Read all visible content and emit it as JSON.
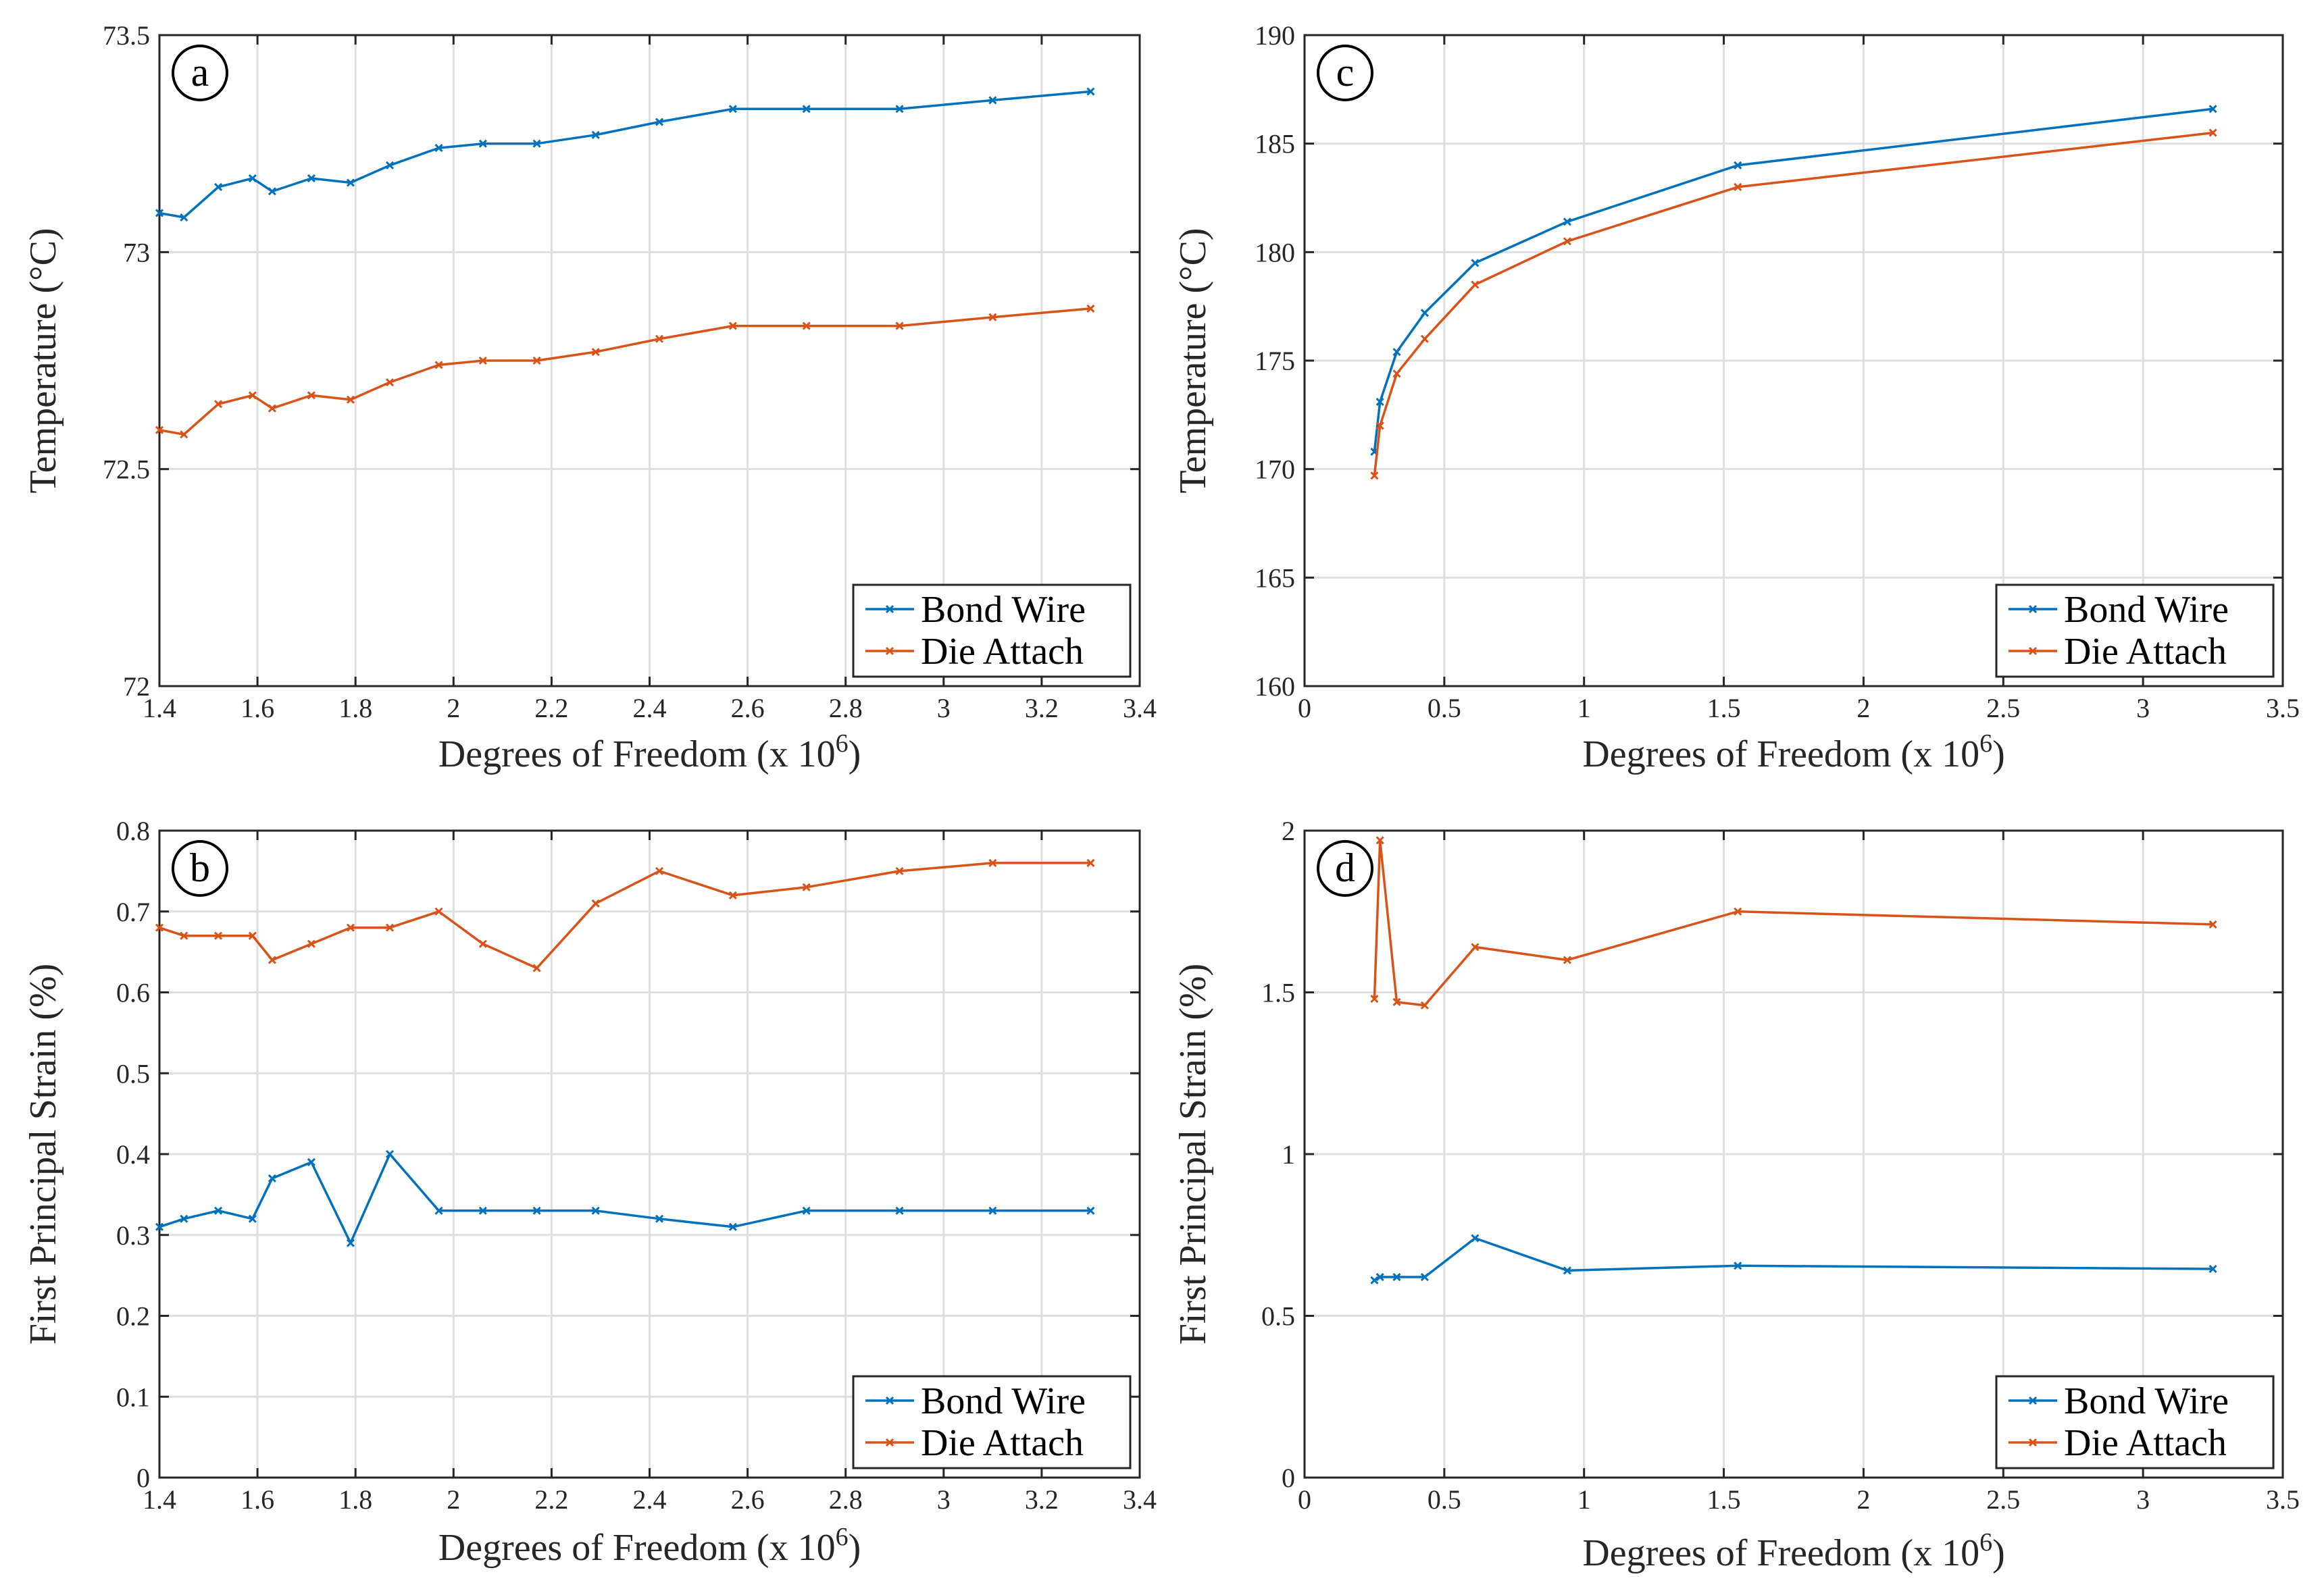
{
  "colors": {
    "bond_wire": "#0072BD",
    "die_attach": "#D95319",
    "axes": "#262626",
    "grid": "#dfdfdf"
  },
  "chart_data": [
    {
      "id": "a",
      "panel_label": "a",
      "type": "line",
      "xlabel": "Degrees of Freedom (x 10",
      "xlabel_exponent": "6",
      "xlabel_close": ")",
      "ylabel": "Temperature (°C)",
      "xlim": [
        1.4,
        3.4
      ],
      "ylim": [
        72,
        73.5
      ],
      "xticks": [
        1.4,
        1.6,
        1.8,
        2,
        2.2,
        2.4,
        2.6,
        2.8,
        3,
        3.2,
        3.4
      ],
      "xtick_labels": [
        "1.4",
        "1.6",
        "1.8",
        "2",
        "2.2",
        "2.4",
        "2.6",
        "2.8",
        "3",
        "3.2",
        "3.4"
      ],
      "yticks": [
        72,
        72.5,
        73,
        73.5
      ],
      "ytick_labels": [
        "72",
        "72.5",
        "73",
        "73.5"
      ],
      "legend": "bottom-right",
      "series": [
        {
          "name": "Bond Wire",
          "color_key": "bond_wire",
          "x": [
            1.4,
            1.45,
            1.52,
            1.59,
            1.63,
            1.71,
            1.79,
            1.87,
            1.97,
            2.06,
            2.17,
            2.29,
            2.42,
            2.57,
            2.72,
            2.91,
            3.1,
            3.3
          ],
          "values": [
            73.09,
            73.08,
            73.15,
            73.17,
            73.14,
            73.17,
            73.16,
            73.2,
            73.24,
            73.25,
            73.25,
            73.27,
            73.3,
            73.33,
            73.33,
            73.33,
            73.35,
            73.37
          ]
        },
        {
          "name": "Die Attach",
          "color_key": "die_attach",
          "x": [
            1.4,
            1.45,
            1.52,
            1.59,
            1.63,
            1.71,
            1.79,
            1.87,
            1.97,
            2.06,
            2.17,
            2.29,
            2.42,
            2.57,
            2.72,
            2.91,
            3.1,
            3.3
          ],
          "values": [
            72.59,
            72.58,
            72.65,
            72.67,
            72.64,
            72.67,
            72.66,
            72.7,
            72.74,
            72.75,
            72.75,
            72.77,
            72.8,
            72.83,
            72.83,
            72.83,
            72.85,
            72.87
          ]
        }
      ]
    },
    {
      "id": "b",
      "panel_label": "b",
      "type": "line",
      "xlabel": "Degrees of Freedom (x 10",
      "xlabel_exponent": "6",
      "xlabel_close": ")",
      "ylabel": "First Principal Strain (%)",
      "xlim": [
        1.4,
        3.4
      ],
      "ylim": [
        0,
        0.8
      ],
      "xticks": [
        1.4,
        1.6,
        1.8,
        2,
        2.2,
        2.4,
        2.6,
        2.8,
        3,
        3.2,
        3.4
      ],
      "xtick_labels": [
        "1.4",
        "1.6",
        "1.8",
        "2",
        "2.2",
        "2.4",
        "2.6",
        "2.8",
        "3",
        "3.2",
        "3.4"
      ],
      "yticks": [
        0,
        0.1,
        0.2,
        0.3,
        0.4,
        0.5,
        0.6,
        0.7,
        0.8
      ],
      "ytick_labels": [
        "0",
        "0.1",
        "0.2",
        "0.3",
        "0.4",
        "0.5",
        "0.6",
        "0.7",
        "0.8"
      ],
      "legend": "bottom-right",
      "series": [
        {
          "name": "Bond Wire",
          "color_key": "bond_wire",
          "x": [
            1.4,
            1.45,
            1.52,
            1.59,
            1.63,
            1.71,
            1.79,
            1.87,
            1.97,
            2.06,
            2.17,
            2.29,
            2.42,
            2.57,
            2.72,
            2.91,
            3.1,
            3.3
          ],
          "values": [
            0.31,
            0.32,
            0.33,
            0.32,
            0.37,
            0.39,
            0.29,
            0.4,
            0.33,
            0.33,
            0.33,
            0.33,
            0.32,
            0.31,
            0.33,
            0.33,
            0.33,
            0.33
          ]
        },
        {
          "name": "Die Attach",
          "color_key": "die_attach",
          "x": [
            1.4,
            1.45,
            1.52,
            1.59,
            1.63,
            1.71,
            1.79,
            1.87,
            1.97,
            2.06,
            2.17,
            2.29,
            2.42,
            2.57,
            2.72,
            2.91,
            3.1,
            3.3
          ],
          "values": [
            0.68,
            0.67,
            0.67,
            0.67,
            0.64,
            0.66,
            0.68,
            0.68,
            0.7,
            0.66,
            0.63,
            0.71,
            0.75,
            0.72,
            0.73,
            0.75,
            0.76,
            0.76
          ]
        }
      ]
    },
    {
      "id": "c",
      "panel_label": "c",
      "type": "line",
      "xlabel": "Degrees of Freedom (x 10",
      "xlabel_exponent": "6",
      "xlabel_close": ")",
      "ylabel": "Temperature (°C)",
      "xlim": [
        0,
        3.5
      ],
      "ylim": [
        160,
        190
      ],
      "xticks": [
        0,
        0.5,
        1,
        1.5,
        2,
        2.5,
        3,
        3.5
      ],
      "xtick_labels": [
        "0",
        "0.5",
        "1",
        "1.5",
        "2",
        "2.5",
        "3",
        "3.5"
      ],
      "yticks": [
        160,
        165,
        170,
        175,
        180,
        185,
        190
      ],
      "ytick_labels": [
        "160",
        "165",
        "170",
        "175",
        "180",
        "185",
        "190"
      ],
      "legend": "bottom-right",
      "series": [
        {
          "name": "Bond Wire",
          "color_key": "bond_wire",
          "x": [
            0.25,
            0.27,
            0.33,
            0.43,
            0.61,
            0.94,
            1.55,
            3.25
          ],
          "values": [
            170.8,
            173.1,
            175.4,
            177.2,
            179.5,
            181.4,
            184.0,
            186.6
          ]
        },
        {
          "name": "Die Attach",
          "color_key": "die_attach",
          "x": [
            0.25,
            0.27,
            0.33,
            0.43,
            0.61,
            0.94,
            1.55,
            3.25
          ],
          "values": [
            169.7,
            172.0,
            174.4,
            176.0,
            178.5,
            180.5,
            183.0,
            185.5
          ]
        }
      ]
    },
    {
      "id": "d",
      "panel_label": "d",
      "type": "line",
      "xlabel": "Degrees of Freedom (x 10",
      "xlabel_exponent": "6",
      "xlabel_close": ")",
      "ylabel": "First Principal Strain (%)",
      "xlim": [
        0,
        3.5
      ],
      "ylim": [
        0,
        2
      ],
      "xticks": [
        0,
        0.5,
        1,
        1.5,
        2,
        2.5,
        3,
        3.5
      ],
      "xtick_labels": [
        "0",
        "0.5",
        "1",
        "1.5",
        "2",
        "2.5",
        "3",
        "3.5"
      ],
      "yticks": [
        0,
        0.5,
        1,
        1.5,
        2
      ],
      "ytick_labels": [
        "0",
        "0.5",
        "1",
        "1.5",
        "2"
      ],
      "legend": "bottom-right",
      "series": [
        {
          "name": "Bond Wire",
          "color_key": "bond_wire",
          "x": [
            0.25,
            0.27,
            0.33,
            0.43,
            0.61,
            0.94,
            1.55,
            3.25
          ],
          "values": [
            0.61,
            0.62,
            0.62,
            0.62,
            0.74,
            0.64,
            0.655,
            0.645
          ]
        },
        {
          "name": "Die Attach",
          "color_key": "die_attach",
          "x": [
            0.25,
            0.27,
            0.33,
            0.43,
            0.61,
            0.94,
            1.55,
            3.25
          ],
          "values": [
            1.48,
            1.97,
            1.47,
            1.46,
            1.64,
            1.6,
            1.75,
            1.71
          ]
        }
      ]
    }
  ]
}
